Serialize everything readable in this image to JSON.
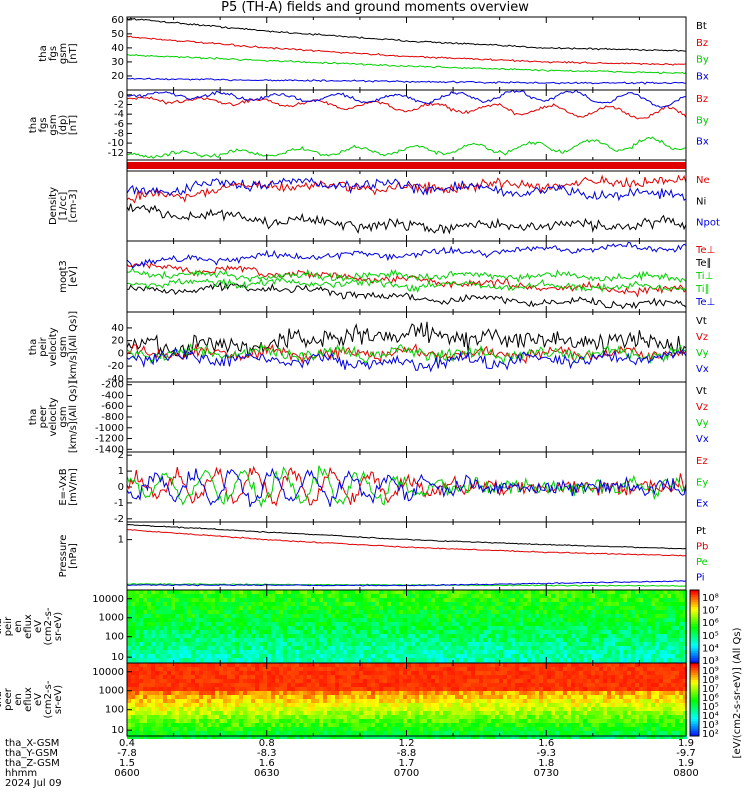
{
  "title": "P5 (TH-A) fields and ground moments overview",
  "colors": {
    "black": "#000000",
    "red": "#e00000",
    "green": "#00d000",
    "blue": "#0000e0"
  },
  "chart_data": [
    {
      "type": "line",
      "ylabel": [
        "tha",
        "fgs",
        "gsm",
        "[nT]"
      ],
      "ylim": [
        10,
        62
      ],
      "yticks": [
        "60",
        "50",
        "40",
        "30",
        "20"
      ],
      "ytick_values": [
        60,
        50,
        40,
        30,
        20
      ],
      "series": [
        {
          "name": "Bt",
          "color": "black",
          "x": [
            0,
            0.25,
            0.5,
            0.75,
            1
          ],
          "values": [
            61,
            52,
            45,
            40,
            38
          ]
        },
        {
          "name": "Bz",
          "color": "red",
          "x": [
            0,
            0.25,
            0.5,
            0.75,
            1
          ],
          "values": [
            48,
            40,
            34,
            30,
            28
          ]
        },
        {
          "name": "By",
          "color": "green",
          "x": [
            0,
            0.25,
            0.5,
            0.75,
            1
          ],
          "values": [
            35,
            31,
            27,
            24,
            22
          ]
        },
        {
          "name": "Bx",
          "color": "blue",
          "x": [
            0,
            0.25,
            0.5,
            0.75,
            1
          ],
          "values": [
            18,
            17,
            16,
            15,
            15
          ]
        }
      ]
    },
    {
      "type": "line",
      "ylabel": [
        "tha",
        "fgs",
        "gsm",
        "(dp)",
        "[nT]"
      ],
      "ylim": [
        -13.5,
        1
      ],
      "yticks": [
        "0",
        "-2",
        "-4",
        "-6",
        "-8",
        "-10",
        "-12"
      ],
      "ytick_values": [
        0,
        -2,
        -4,
        -6,
        -8,
        -10,
        -12
      ],
      "series": [
        {
          "name": "Bz",
          "color": "red",
          "x": [
            0,
            0.25,
            0.5,
            0.75,
            1
          ],
          "values": [
            -1,
            -1.5,
            -2.5,
            -3.2,
            -4
          ]
        },
        {
          "name": "By",
          "color": "green",
          "x": [
            0,
            0.25,
            0.5,
            0.75,
            1
          ],
          "values": [
            -12.5,
            -12,
            -11.5,
            -10.8,
            -10
          ]
        },
        {
          "name": "Bx",
          "color": "blue",
          "x": [
            0,
            0.25,
            0.5,
            0.75,
            1
          ],
          "values": [
            0.2,
            -0.5,
            -0.8,
            0,
            -1.5
          ]
        }
      ]
    },
    {
      "type": "line",
      "ylabel": [
        "Density",
        "[1/cc]",
        "[cm-3]"
      ],
      "ylim": [
        0,
        1
      ],
      "yticks": [],
      "series": [
        {
          "name": "Ne",
          "color": "red",
          "x": [
            0,
            0.25,
            0.5,
            0.75,
            1
          ],
          "values": [
            0.6,
            0.8,
            0.75,
            0.82,
            0.85
          ]
        },
        {
          "name": "Ni",
          "color": "black",
          "x": [
            0,
            0.25,
            0.5,
            0.75,
            1
          ],
          "values": [
            0.45,
            0.3,
            0.2,
            0.22,
            0.25
          ]
        },
        {
          "name": "Npot",
          "color": "blue",
          "x": [
            0,
            0.25,
            0.5,
            0.75,
            1
          ],
          "values": [
            0.7,
            0.85,
            0.78,
            0.7,
            0.65
          ]
        }
      ]
    },
    {
      "type": "line",
      "ylabel": [
        "moqt3",
        "[eV]"
      ],
      "ylim": [
        0,
        1
      ],
      "yticks": [],
      "series": [
        {
          "name": "Te⊥",
          "color": "red",
          "x": [
            0,
            0.25,
            0.5,
            0.75,
            1
          ],
          "values": [
            0.65,
            0.55,
            0.45,
            0.35,
            0.3
          ]
        },
        {
          "name": "Te∥",
          "color": "black",
          "x": [
            0,
            0.25,
            0.5,
            0.75,
            1
          ],
          "values": [
            0.3,
            0.35,
            0.2,
            0.15,
            0.1
          ]
        },
        {
          "name": "Ti⊥",
          "color": "green",
          "x": [
            0,
            0.25,
            0.5,
            0.75,
            1
          ],
          "values": [
            0.55,
            0.5,
            0.52,
            0.5,
            0.48
          ]
        },
        {
          "name": "Ti∥",
          "color": "green",
          "x": [
            0,
            0.25,
            0.5,
            0.75,
            1
          ],
          "values": [
            0.4,
            0.42,
            0.38,
            0.36,
            0.35
          ]
        },
        {
          "name": "Te⊥",
          "color": "blue",
          "x": [
            0,
            0.25,
            0.5,
            0.75,
            1
          ],
          "values": [
            0.7,
            0.78,
            0.82,
            0.88,
            0.92
          ]
        }
      ]
    },
    {
      "type": "line",
      "ylabel": [
        "tha",
        "peir",
        "velocity",
        "gsm",
        "[km/s](All Qs)]"
      ],
      "ylim": [
        -45,
        65
      ],
      "yticks": [
        "40",
        "20",
        "0",
        "-20",
        "-40"
      ],
      "ytick_values": [
        40,
        20,
        0,
        -20,
        -40
      ],
      "series": [
        {
          "name": "Vt",
          "color": "black",
          "x": [
            0,
            0.25,
            0.5,
            0.75,
            1
          ],
          "values": [
            10,
            15,
            30,
            20,
            15
          ]
        },
        {
          "name": "Vz",
          "color": "red",
          "x": [
            0,
            0.25,
            0.5,
            0.75,
            1
          ],
          "values": [
            0,
            0,
            0,
            0,
            0
          ]
        },
        {
          "name": "Vy",
          "color": "green",
          "x": [
            0,
            0.25,
            0.5,
            0.75,
            1
          ],
          "values": [
            0,
            0,
            0,
            0,
            0
          ]
        },
        {
          "name": "Vx",
          "color": "blue",
          "x": [
            0,
            0.25,
            0.5,
            0.75,
            1
          ],
          "values": [
            -5,
            -10,
            -15,
            -10,
            -5
          ]
        }
      ]
    },
    {
      "type": "line",
      "ylabel": [
        "tha",
        "peer",
        "velocity",
        "gsm",
        "[km/s](All Qs)]"
      ],
      "ylim": [
        -1450,
        -150
      ],
      "yticks": [
        "-200",
        "-400",
        "-600",
        "-800",
        "-1000",
        "-1200",
        "-1400"
      ],
      "ytick_values": [
        -200,
        -400,
        -600,
        -800,
        -1000,
        -1200,
        -1400
      ],
      "series": [
        {
          "name": "Vt",
          "color": "black",
          "values": []
        },
        {
          "name": "Vz",
          "color": "red",
          "values": []
        },
        {
          "name": "Vy",
          "color": "green",
          "values": []
        },
        {
          "name": "Vx",
          "color": "blue",
          "values": []
        }
      ]
    },
    {
      "type": "line",
      "ylabel": [
        "E=-VxB",
        "[mV/m]"
      ],
      "ylim": [
        -2.2,
        2.2
      ],
      "yticks": [
        "2",
        "1",
        "0",
        "-1",
        "-2"
      ],
      "ytick_values": [
        2,
        1,
        0,
        -1,
        -2
      ],
      "series": [
        {
          "name": "Ez",
          "color": "red",
          "x": [
            0,
            0.5,
            1
          ],
          "values": [
            0,
            0,
            0
          ]
        },
        {
          "name": "Ey",
          "color": "green",
          "x": [
            0,
            0.5,
            1
          ],
          "values": [
            0,
            0,
            0
          ]
        },
        {
          "name": "Ex",
          "color": "blue",
          "x": [
            0,
            0.5,
            1
          ],
          "values": [
            0,
            0,
            0
          ]
        }
      ]
    },
    {
      "type": "line",
      "ylabel": [
        "Pressure",
        "[nPa]"
      ],
      "ylim": [
        0,
        1.35
      ],
      "yticks": [
        "1"
      ],
      "ytick_values": [
        1
      ],
      "series": [
        {
          "name": "Pt",
          "color": "black",
          "x": [
            0,
            0.25,
            0.5,
            0.75,
            1
          ],
          "values": [
            1.3,
            1.15,
            1.0,
            0.9,
            0.82
          ]
        },
        {
          "name": "Pb",
          "color": "red",
          "x": [
            0,
            0.25,
            0.5,
            0.75,
            1
          ],
          "values": [
            1.2,
            1.0,
            0.85,
            0.75,
            0.68
          ]
        },
        {
          "name": "Pe",
          "color": "green",
          "x": [
            0,
            1
          ],
          "values": [
            0.12,
            0.08
          ]
        },
        {
          "name": "Pi",
          "color": "blue",
          "x": [
            0,
            0.5,
            0.75,
            1
          ],
          "values": [
            0.1,
            0.09,
            0.13,
            0.18
          ]
        }
      ]
    },
    {
      "type": "heatmap",
      "ylabel": [
        "tha",
        "peir",
        "en",
        "eflux",
        "eV",
        "(cm2-s-",
        "sr-eV)"
      ],
      "yticks": [
        "10000",
        "1000",
        "100",
        "10"
      ],
      "colorbar_ticks": [
        "10⁸",
        "10⁷",
        "10⁶",
        "10⁵",
        "10⁴",
        "10³"
      ]
    },
    {
      "type": "heatmap",
      "ylabel": [
        "tha",
        "peer",
        "en",
        "eflux",
        "eV",
        "(cm2-s-",
        "sr-eV)"
      ],
      "yticks": [
        "10000",
        "1000",
        "100",
        "10"
      ],
      "colorbar_ticks": [
        "10⁹",
        "10⁸",
        "10⁷",
        "10⁶",
        "10⁵",
        "10⁴",
        "10³",
        "10²"
      ]
    }
  ],
  "colorbar_label": "[eV/(cm2-s-sr-eV)] (All Qs)",
  "ephemeris": {
    "rows": [
      {
        "label": "tha_X-GSM",
        "values": [
          "0.4",
          "0.8",
          "1.2",
          "1.6",
          "1.9"
        ]
      },
      {
        "label": "tha_Y-GSM",
        "values": [
          "-7.8",
          "-8.3",
          "-8.8",
          "-9.3",
          "-9.7"
        ]
      },
      {
        "label": "tha_Z-GSM",
        "values": [
          "1.5",
          "1.6",
          "1.7",
          "1.8",
          "1.9"
        ]
      },
      {
        "label": "hhmm",
        "values": [
          "0600",
          "0630",
          "0700",
          "0730",
          "0800"
        ]
      }
    ],
    "date": "2024 Jul 09"
  }
}
